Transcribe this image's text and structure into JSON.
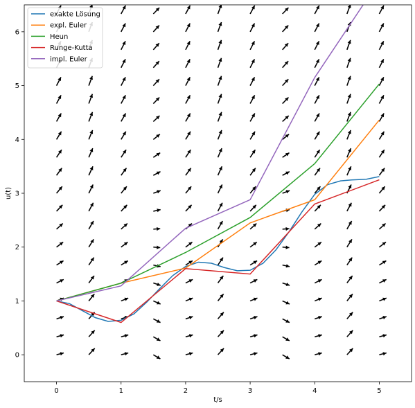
{
  "chart_data": {
    "type": "line",
    "title": "",
    "xlabel": "t/s",
    "ylabel": "u(t)",
    "xlim": [
      -0.5,
      5.5
    ],
    "ylim": [
      -0.5,
      6.5
    ],
    "xticks": [
      0,
      1,
      2,
      3,
      4,
      5
    ],
    "yticks": [
      0,
      1,
      2,
      3,
      4,
      5,
      6
    ],
    "grid": false,
    "legend_position": "top-left",
    "vector_field": {
      "t": [
        0,
        0.5,
        1,
        1.5,
        2,
        2.5,
        3,
        3.5,
        4,
        4.5,
        5
      ],
      "u_step": 0.3333,
      "u_min": 0,
      "u_max": 6.3333,
      "color": "#000000"
    },
    "series": [
      {
        "name": "exakte Lösung",
        "color": "#1f77b4",
        "x": [
          0,
          0.2,
          0.4,
          0.6,
          0.8,
          1.0,
          1.2,
          1.4,
          1.6,
          1.8,
          2.0,
          2.2,
          2.4,
          2.6,
          2.8,
          3.0,
          3.2,
          3.4,
          3.6,
          3.8,
          4.0,
          4.2,
          4.4,
          4.6,
          4.8,
          5.0
        ],
        "y": [
          1.0,
          0.95,
          0.82,
          0.69,
          0.62,
          0.64,
          0.76,
          0.98,
          1.23,
          1.47,
          1.64,
          1.72,
          1.7,
          1.62,
          1.56,
          1.57,
          1.7,
          1.95,
          2.28,
          2.65,
          2.98,
          3.16,
          3.23,
          3.25,
          3.26,
          3.31
        ]
      },
      {
        "name": "expl. Euler",
        "color": "#ff7f0e",
        "x": [
          0,
          1,
          2,
          3,
          4,
          5
        ],
        "y": [
          1.0,
          1.33,
          1.61,
          2.45,
          2.88,
          4.36
        ]
      },
      {
        "name": "Heun",
        "color": "#2ca02c",
        "x": [
          0,
          1,
          2,
          3,
          4,
          5
        ],
        "y": [
          1.0,
          1.33,
          1.9,
          2.55,
          3.55,
          5.03
        ]
      },
      {
        "name": "Runge-Kutta",
        "color": "#d62728",
        "x": [
          0,
          1,
          2,
          3,
          4,
          5
        ],
        "y": [
          1.0,
          0.6,
          1.6,
          1.5,
          2.8,
          3.25
        ]
      },
      {
        "name": "impl. Euler",
        "color": "#9467bd",
        "x": [
          0,
          1,
          2,
          3,
          4,
          5
        ],
        "y": [
          1.0,
          1.28,
          2.35,
          2.88,
          5.15,
          6.95
        ]
      }
    ]
  }
}
